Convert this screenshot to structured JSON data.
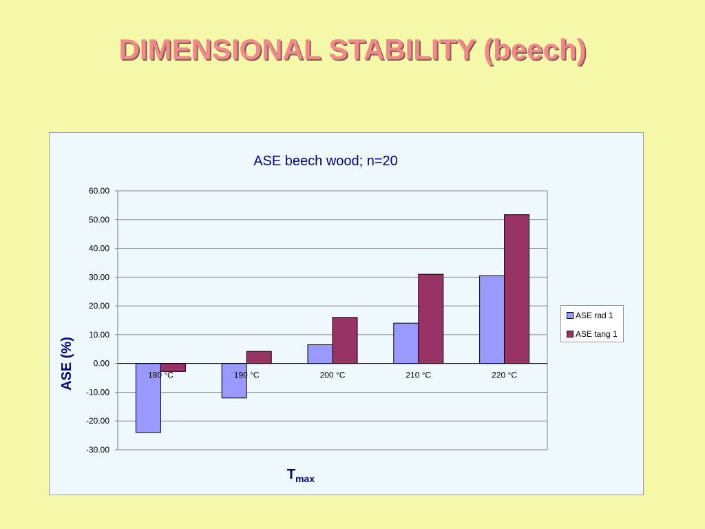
{
  "slide": {
    "title": "DIMENSIONAL STABILITY (beech)"
  },
  "chart_data": {
    "type": "bar",
    "title": "ASE beech wood; n=20",
    "ylabel": "ASE (%)",
    "xlabel_main": "T",
    "xlabel_sub": "max",
    "categories": [
      "180 °C",
      "190 °C",
      "200 °C",
      "210 °C",
      "220 °C"
    ],
    "series": [
      {
        "name": "ASE rad 1",
        "color": "#9999ff",
        "values": [
          -24.0,
          -12.0,
          6.5,
          14.0,
          30.5
        ]
      },
      {
        "name": "ASE tang 1",
        "color": "#993366",
        "values": [
          -2.8,
          4.2,
          16.0,
          31.0,
          51.7
        ]
      }
    ],
    "ylim": [
      -30,
      60
    ],
    "yticks": [
      "60.00",
      "50.00",
      "40.00",
      "30.00",
      "20.00",
      "10.00",
      "0.00",
      "-10.00",
      "-20.00",
      "-30.00"
    ],
    "grid": true,
    "legend_position": "right"
  }
}
